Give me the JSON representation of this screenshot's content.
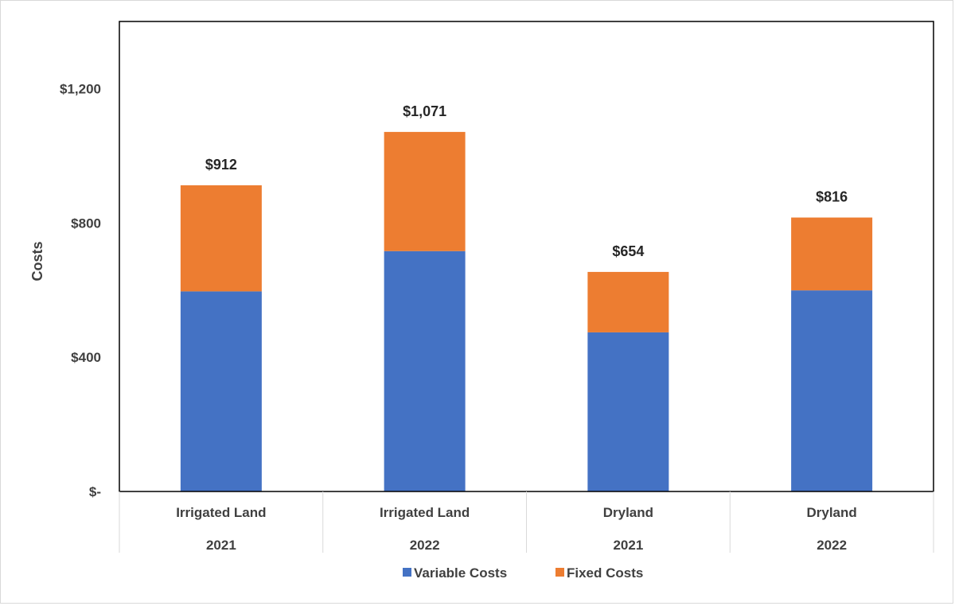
{
  "chart_data": {
    "type": "bar",
    "stacked": true,
    "categories": [
      {
        "name": "Irrigated Land",
        "year": "2021"
      },
      {
        "name": "Irrigated Land",
        "year": "2022"
      },
      {
        "name": "Dryland",
        "year": "2021"
      },
      {
        "name": "Dryland",
        "year": "2022"
      }
    ],
    "series": [
      {
        "name": "Variable Costs",
        "color": "#4472c4",
        "values": [
          596,
          716,
          474,
          599
        ]
      },
      {
        "name": "Fixed Costs",
        "color": "#ed7d31",
        "values": [
          316,
          355,
          180,
          217
        ]
      }
    ],
    "totals": [
      912,
      1071,
      654,
      816
    ],
    "total_labels": [
      "$912",
      "$1,071",
      "$654",
      "$816"
    ],
    "ylabel": "Costs",
    "ylim": [
      0,
      1400
    ],
    "yticks": [
      {
        "value": 0,
        "label": "$-"
      },
      {
        "value": 400,
        "label": "$400"
      },
      {
        "value": 800,
        "label": "$800"
      },
      {
        "value": 1200,
        "label": "$1,200"
      }
    ],
    "grid": false,
    "legend_position": "bottom"
  }
}
